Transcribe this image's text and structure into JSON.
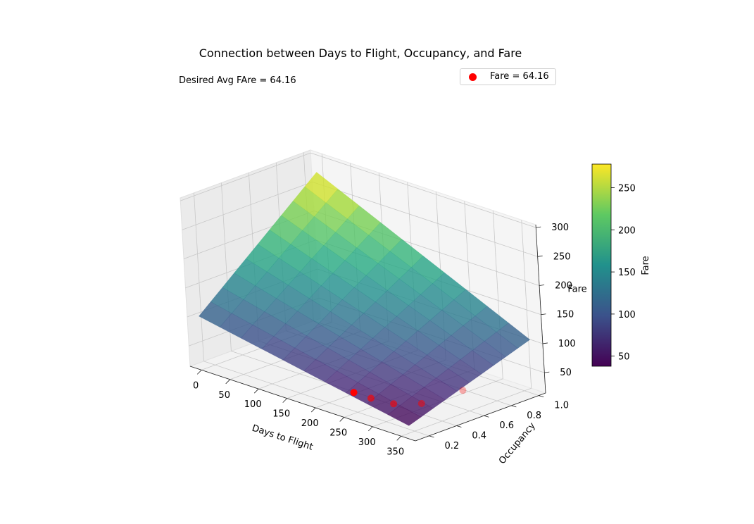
{
  "chart_data": {
    "type": "surface3d",
    "title": "Connection between Days to Flight, Occupancy, and Fare",
    "annotation": "Desired Avg FAre = 64.16",
    "xlabel": "Days to Flight",
    "ylabel": "Occupancy",
    "zlabel": "Fare",
    "xlim": [
      -20,
      375
    ],
    "ylim": [
      0.1,
      1.05
    ],
    "zlim": [
      15,
      305
    ],
    "xticks": [
      0,
      50,
      100,
      150,
      200,
      250,
      300,
      350
    ],
    "yticks": [
      0.2,
      0.4,
      0.6,
      0.8,
      1.0
    ],
    "yticklabels": [
      "0.2",
      "0.4",
      "0.6",
      "0.8",
      "1.0"
    ],
    "zticks": [
      50,
      100,
      150,
      200,
      250,
      300
    ],
    "surface": {
      "x_range": [
        1,
        365
      ],
      "y_range": [
        0.1,
        1.0
      ],
      "corners": {
        "x_min_y_max": 278,
        "x_max_y_max": 108,
        "x_min_y_min": 108,
        "x_max_y_min": 38
      },
      "grid_count": 10,
      "colormap": "viridis",
      "alpha": 0.8
    },
    "colorbar": {
      "label": "Fare",
      "range": [
        38,
        278
      ],
      "ticks": [
        50,
        100,
        150,
        200,
        250
      ]
    },
    "series": [
      {
        "name": "Fare = 64.16",
        "type": "scatter",
        "color": "#ff0000",
        "points": [
          {
            "x": 270,
            "y": 0.1,
            "z": 64.16
          },
          {
            "x": 300,
            "y": 0.1,
            "z": 64.16
          },
          {
            "x": 335,
            "y": 0.12,
            "z": 64.16
          },
          {
            "x": 360,
            "y": 0.22,
            "z": 64.16
          },
          {
            "x": 365,
            "y": 0.5,
            "z": 64.16
          }
        ]
      }
    ],
    "legend_position": "top-right",
    "grid": true
  }
}
